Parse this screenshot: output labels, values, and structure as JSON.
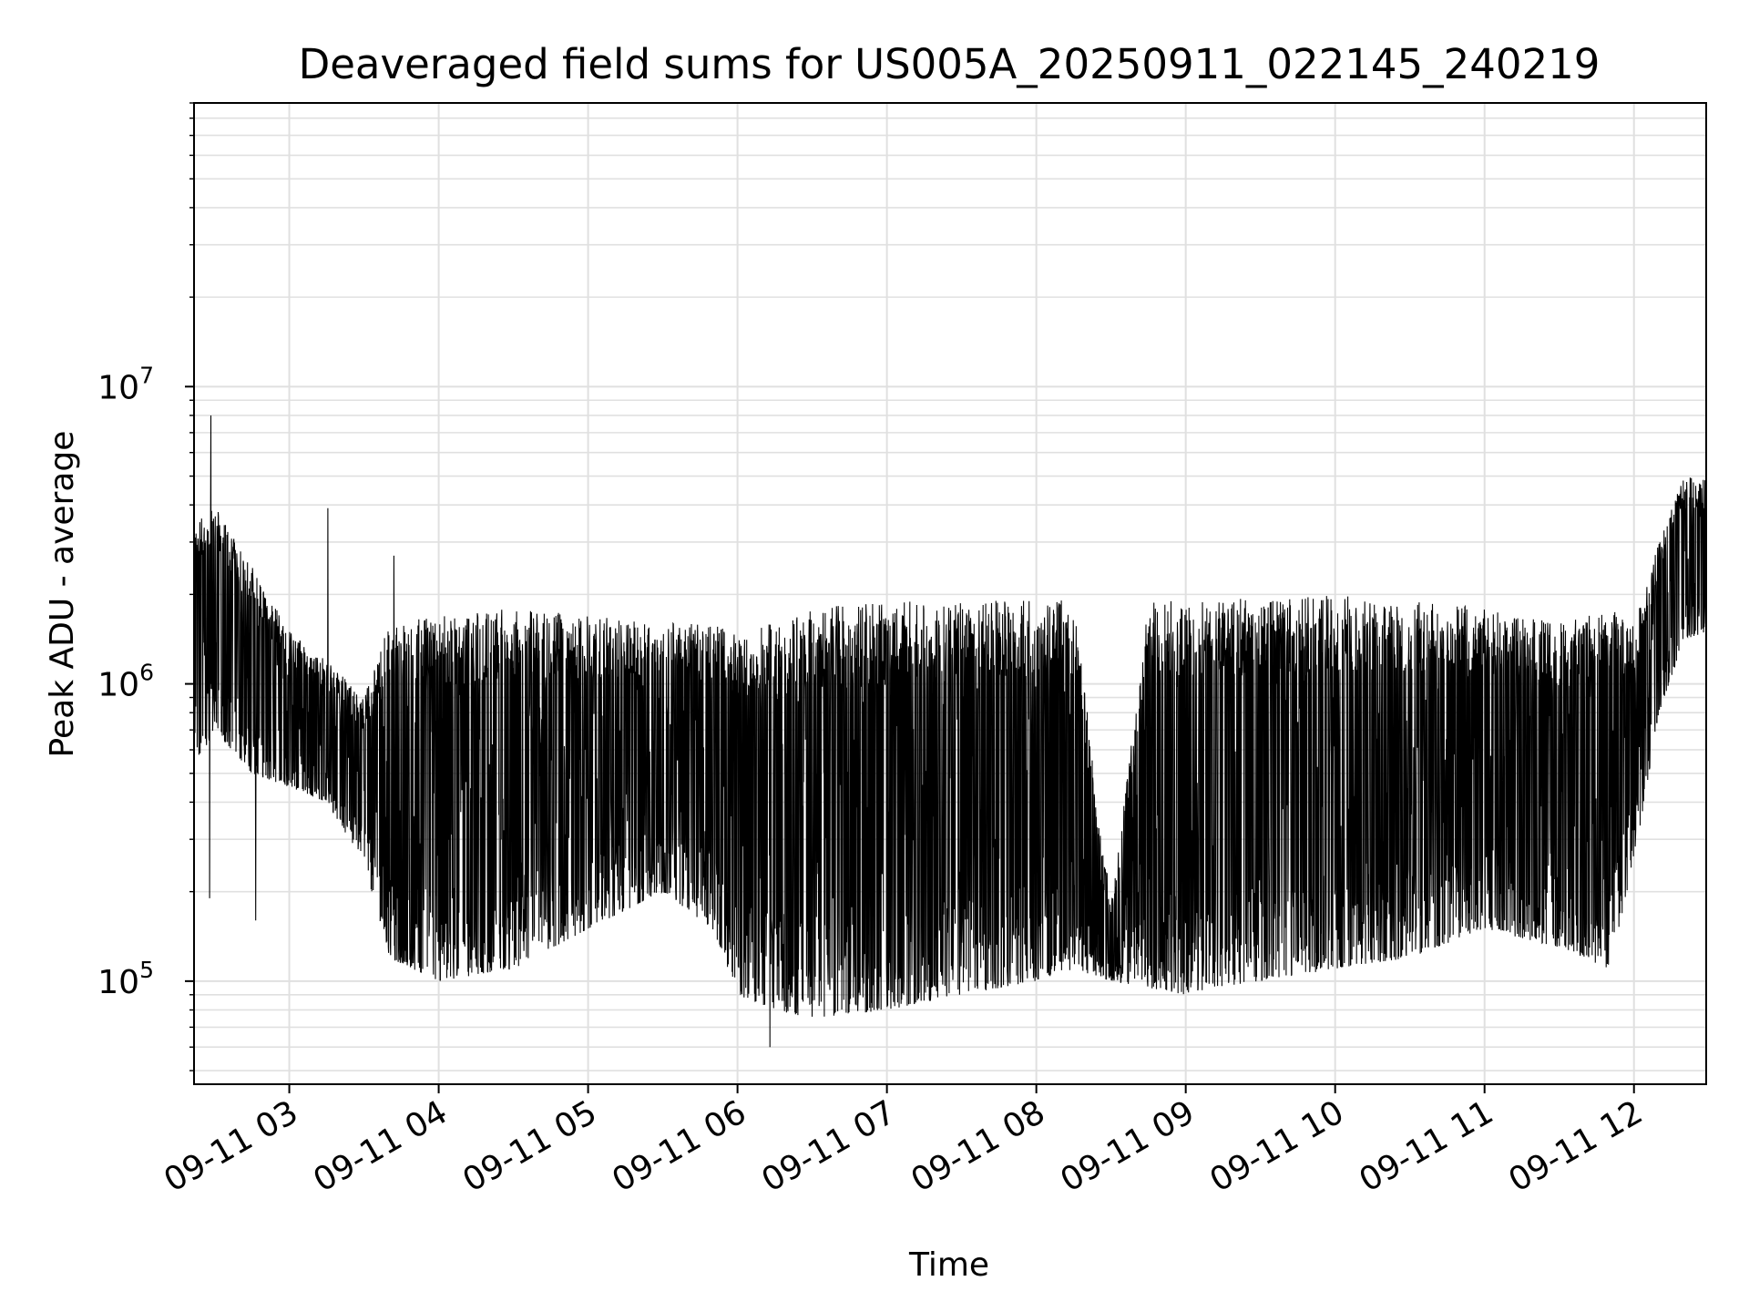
{
  "chart_data": {
    "type": "line",
    "title": "Deaveraged field sums for US005A_20250911_022145_240219",
    "xlabel": "Time",
    "ylabel": "Peak ADU - average",
    "y_scale": "log",
    "ylim": [
      45000,
      90000000
    ],
    "xlim": [
      "2025-09-11 02:21:45",
      "2025-09-11 12:29:00"
    ],
    "grid": true,
    "line_color": "#000000",
    "grid_color": "#e0e0e0",
    "x_ticks": [
      {
        "value": "2025-09-11 03:00",
        "label": "09-11 03"
      },
      {
        "value": "2025-09-11 04:00",
        "label": "09-11 04"
      },
      {
        "value": "2025-09-11 05:00",
        "label": "09-11 05"
      },
      {
        "value": "2025-09-11 06:00",
        "label": "09-11 06"
      },
      {
        "value": "2025-09-11 07:00",
        "label": "09-11 07"
      },
      {
        "value": "2025-09-11 08:00",
        "label": "09-11 08"
      },
      {
        "value": "2025-09-11 09:00",
        "label": "09-11 09"
      },
      {
        "value": "2025-09-11 10:00",
        "label": "09-11 10"
      },
      {
        "value": "2025-09-11 11:00",
        "label": "09-11 11"
      },
      {
        "value": "2025-09-11 12:00",
        "label": "09-11 12"
      }
    ],
    "y_ticks": [
      {
        "value": 100000,
        "base": "10",
        "exp": "5"
      },
      {
        "value": 1000000,
        "base": "10",
        "exp": "6"
      },
      {
        "value": 10000000,
        "base": "10",
        "exp": "7"
      }
    ],
    "envelope": {
      "time": [
        "02:21",
        "02:30",
        "02:45",
        "03:00",
        "03:15",
        "03:30",
        "03:40",
        "04:00",
        "04:30",
        "05:00",
        "05:30",
        "05:50",
        "06:00",
        "06:15",
        "06:30",
        "07:00",
        "07:30",
        "08:00",
        "08:15",
        "08:30",
        "08:45",
        "09:00",
        "09:10",
        "09:30",
        "10:00",
        "10:30",
        "11:00",
        "11:30",
        "11:50",
        "12:00",
        "12:10",
        "12:20",
        "12:29"
      ],
      "low": [
        500000,
        700000,
        500000,
        450000,
        400000,
        250000,
        120000,
        100000,
        110000,
        150000,
        200000,
        150000,
        90000,
        80000,
        75000,
        80000,
        90000,
        100000,
        110000,
        100000,
        95000,
        90000,
        95000,
        100000,
        110000,
        120000,
        150000,
        130000,
        110000,
        250000,
        800000,
        1400000,
        1500000
      ],
      "high": [
        3500000,
        4000000,
        2500000,
        1500000,
        1200000,
        900000,
        1600000,
        1700000,
        1800000,
        1700000,
        1600000,
        1600000,
        1500000,
        1600000,
        1800000,
        1900000,
        1900000,
        1950000,
        1900000,
        180000,
        1900000,
        1900000,
        2000000,
        1900000,
        2000000,
        1900000,
        1800000,
        1600000,
        1800000,
        1600000,
        3000000,
        5000000,
        5000000
      ]
    },
    "noted_points": [
      {
        "x": "02:28:30",
        "y": 8000000
      },
      {
        "x": "03:15:30",
        "y": 3900000
      },
      {
        "x": "03:42:00",
        "y": 2700000
      },
      {
        "x": "02:46:30",
        "y": 160000
      },
      {
        "x": "02:28:00",
        "y": 190000
      },
      {
        "x": "06:13:00",
        "y": 60000
      }
    ]
  }
}
